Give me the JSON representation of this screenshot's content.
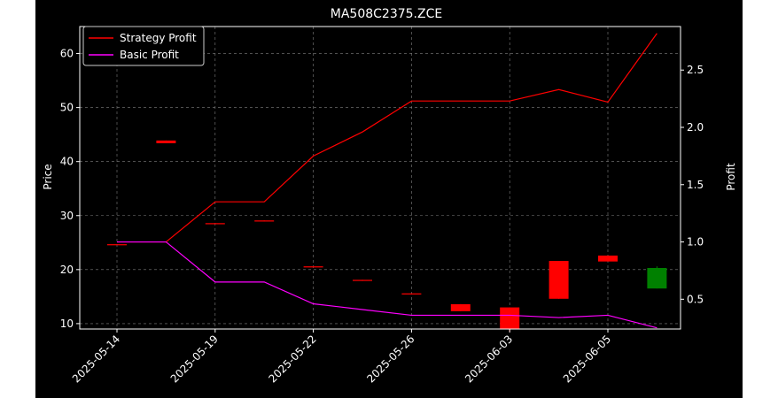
{
  "chart_data": {
    "type": "candlestick+line",
    "title": "MA508C2375.ZCE",
    "xlabel": "",
    "ylabel_left": "Price",
    "ylabel_right": "Profit",
    "grid": true,
    "legend_position": "top-left",
    "x_tick_labels": [
      "2025-05-14",
      "2025-05-19",
      "2025-05-22",
      "2025-05-26",
      "2025-06-03",
      "2025-06-05"
    ],
    "y_left_ticks": [
      10,
      20,
      30,
      40,
      50,
      60
    ],
    "y_left_range": [
      9,
      65
    ],
    "y_right_ticks": [
      0.5,
      1.0,
      1.5,
      2.0,
      2.5
    ],
    "y_right_range": [
      0.24,
      2.88
    ],
    "candles": [
      {
        "open": 24.7,
        "close": 24.7,
        "high": 24.7,
        "low": 24.7
      },
      {
        "open": 43.9,
        "close": 43.4,
        "high": 43.9,
        "low": 43.4
      },
      {
        "open": 28.6,
        "close": 28.4,
        "high": 28.6,
        "low": 28.4
      },
      {
        "open": 29.1,
        "close": 28.9,
        "high": 29.1,
        "low": 28.9
      },
      {
        "open": 20.6,
        "close": 20.4,
        "high": 20.6,
        "low": 20.4
      },
      {
        "open": 18.1,
        "close": 17.9,
        "high": 18.1,
        "low": 17.9
      },
      {
        "open": 15.6,
        "close": 15.4,
        "high": 15.6,
        "low": 15.4
      },
      {
        "open": 13.6,
        "close": 12.3,
        "high": 13.6,
        "low": 12.3
      },
      {
        "open": 13.0,
        "close": 8.5,
        "high": 13.0,
        "low": 8.5
      },
      {
        "open": 21.6,
        "close": 14.6,
        "high": 21.6,
        "low": 14.6
      },
      {
        "open": 22.6,
        "close": 21.5,
        "high": 22.6,
        "low": 21.5
      },
      {
        "open": 16.5,
        "close": 20.3,
        "high": 20.6,
        "low": 16.5
      }
    ],
    "series": [
      {
        "name": "Strategy Profit",
        "color": "#ff0000",
        "values": [
          1.0,
          1.0,
          1.35,
          1.35,
          1.75,
          1.96,
          2.23,
          2.23,
          2.23,
          2.33,
          2.22,
          2.82
        ]
      },
      {
        "name": "Basic Profit",
        "color": "#ff00ff",
        "values": [
          1.0,
          1.0,
          0.65,
          0.65,
          0.46,
          0.41,
          0.36,
          0.36,
          0.36,
          0.34,
          0.36,
          0.25
        ]
      }
    ],
    "colors": {
      "up": "#008000",
      "down": "#ff0000",
      "background": "#000000",
      "grid": "#808080",
      "axis": "#ffffff"
    }
  }
}
